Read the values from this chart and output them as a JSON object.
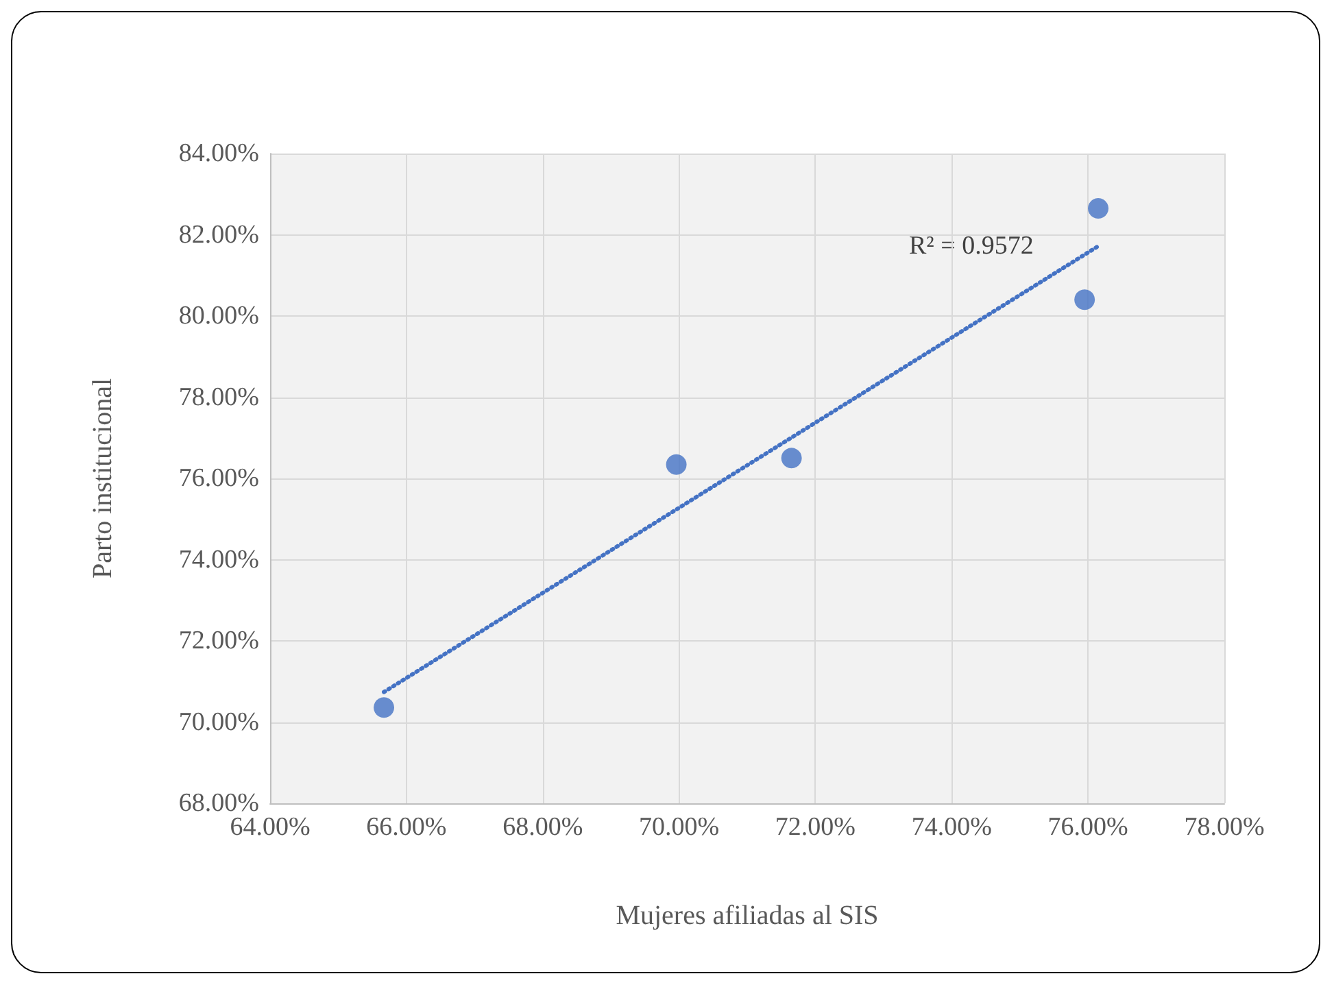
{
  "chart_data": {
    "type": "scatter",
    "xlabel": "Mujeres afiliadas al SIS",
    "ylabel": "Parto institucional",
    "x": [
      65.67,
      69.96,
      71.65,
      75.95,
      76.15
    ],
    "series": [
      {
        "color": "#4472c4",
        "marker": "circle",
        "values": [
          70.36,
          76.34,
          76.5,
          80.4,
          82.65
        ]
      },
      {
        "type": "line",
        "color": "#4472c4",
        "marker": "none",
        "line_style": "dotted",
        "x": [
          65.67,
          76.15
        ],
        "values": [
          70.74,
          81.72
        ]
      }
    ],
    "xlim": [
      64,
      78
    ],
    "ylim": [
      68,
      84
    ],
    "xticks": [
      {
        "value": 64,
        "label": "64.00%"
      },
      {
        "value": 66,
        "label": "66.00%"
      },
      {
        "value": 68,
        "label": "68.00%"
      },
      {
        "value": 70,
        "label": "70.00%"
      },
      {
        "value": 72,
        "label": "72.00%"
      },
      {
        "value": 74,
        "label": "74.00%"
      },
      {
        "value": 76,
        "label": "76.00%"
      },
      {
        "value": 78,
        "label": "78.00%"
      }
    ],
    "yticks": [
      {
        "value": 68,
        "label": "68.00%"
      },
      {
        "value": 70,
        "label": "70.00%"
      },
      {
        "value": 72,
        "label": "72.00%"
      },
      {
        "value": 74,
        "label": "74.00%"
      },
      {
        "value": 76,
        "label": "76.00%"
      },
      {
        "value": 78,
        "label": "78.00%"
      },
      {
        "value": 80,
        "label": "80.00%"
      },
      {
        "value": 82,
        "label": "82.00%"
      },
      {
        "value": 84,
        "label": "84.00%"
      }
    ],
    "annotations": [
      "R² = 0.9572"
    ],
    "grid": true
  }
}
